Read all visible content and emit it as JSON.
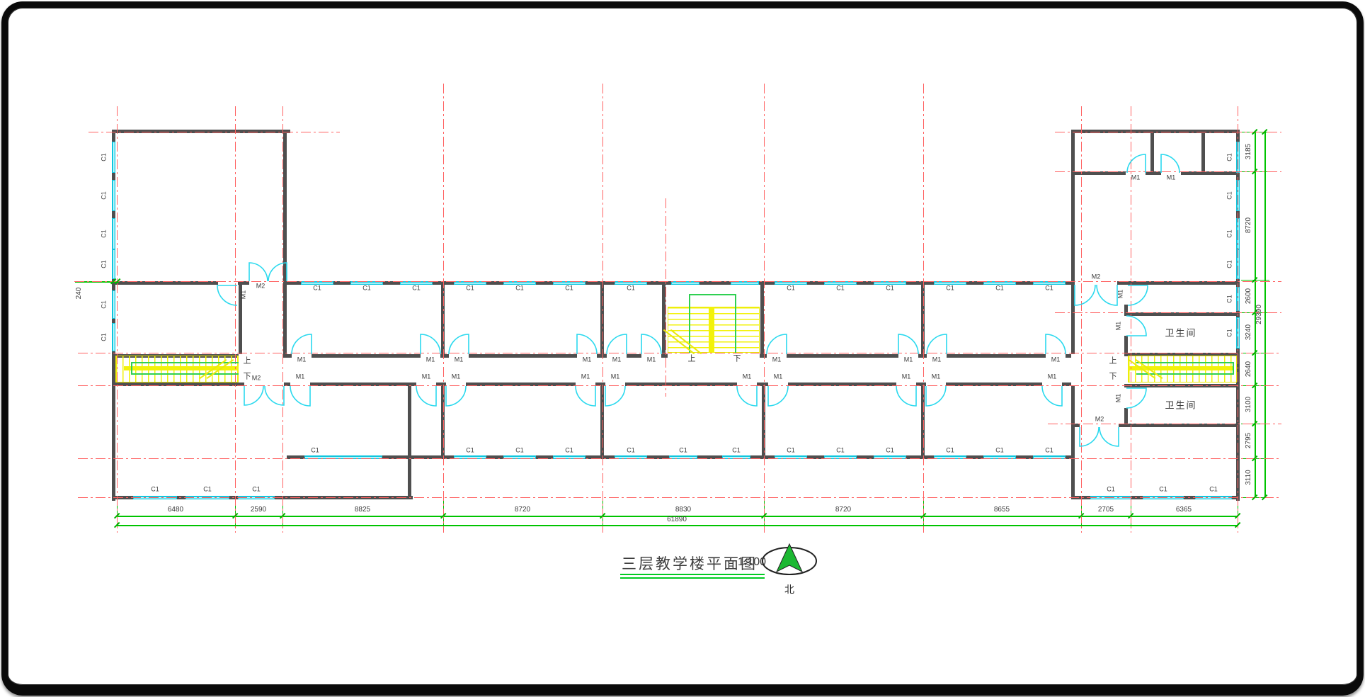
{
  "title": {
    "text": "三层教学楼平面图",
    "scale": "1:100",
    "north": "北"
  },
  "markers": {
    "window": "C1",
    "door": "M1",
    "double_door": "M2",
    "up": "上",
    "down": "下",
    "toilet": "卫生间"
  },
  "dimensions": {
    "bottom_segments": [
      "6480",
      "2590",
      "8825",
      "8720",
      "8830",
      "8720",
      "8655",
      "2705",
      "6365"
    ],
    "bottom_total": "61890",
    "right_segments": [
      "3185",
      "8720",
      "2600",
      "3240",
      "2640",
      "3100",
      "2795",
      "3110"
    ],
    "right_total": "29390",
    "left_segment": "240"
  },
  "colors": {
    "wall": "#4f4f4f",
    "axis": "#ff6060",
    "window": "#2bd9ee",
    "door": "#2bd9ee",
    "dimension": "#00c400",
    "stair": "#f2f20a",
    "rail": "#2fd052",
    "text": "#3a3a3a",
    "title_underline": "#00cc22",
    "north_arrow": "#1cb832"
  }
}
